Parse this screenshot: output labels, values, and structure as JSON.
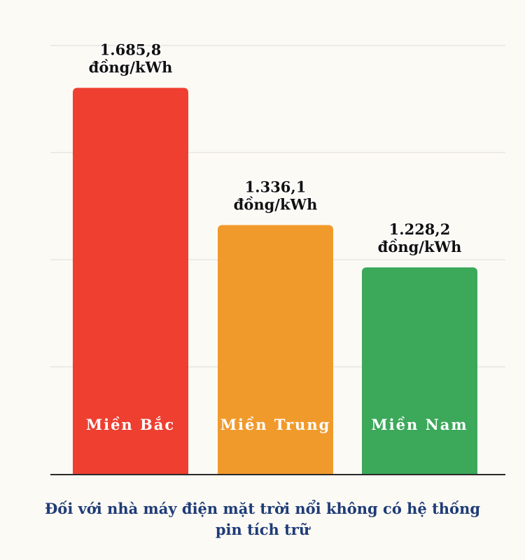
{
  "chart_data": {
    "type": "bar",
    "categories": [
      "Miền Bắc",
      "Miền Trung",
      "Miền Nam"
    ],
    "values": [
      1685.8,
      1336.1,
      1228.2
    ],
    "value_labels": [
      "1.685,8",
      "1.336,1",
      "1.228,2"
    ],
    "unit": "đồng/kWh",
    "bar_colors": [
      "#ee3f31",
      "#f19a2c",
      "#3ba85a"
    ],
    "grid": true,
    "legend": "none"
  },
  "caption": {
    "line1": "Đối với nhà máy điện mặt trời nổi không có hệ thống",
    "line2": "pin tích trữ"
  }
}
